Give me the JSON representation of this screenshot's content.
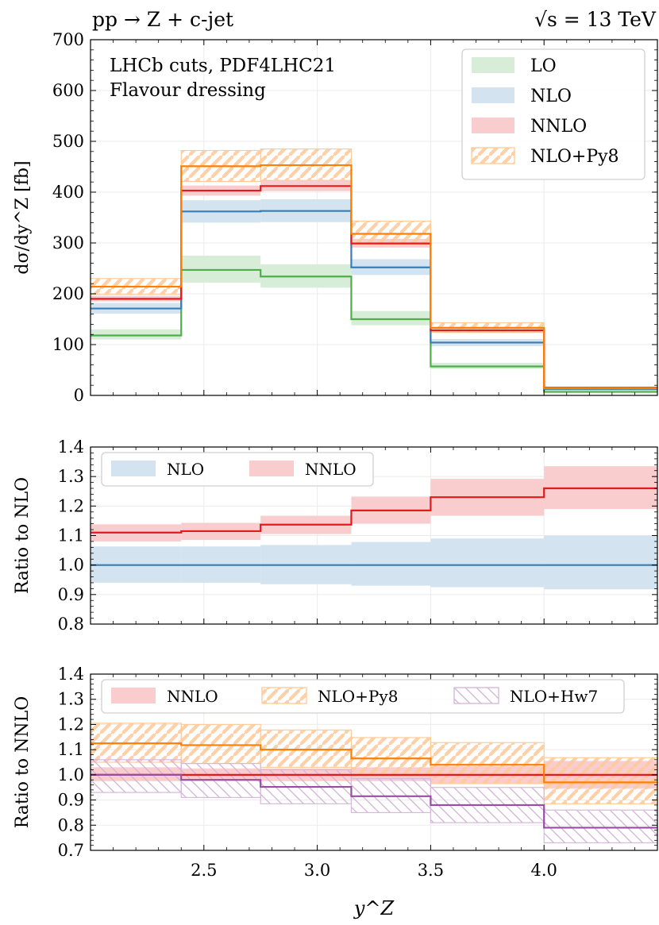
{
  "chart_data": [
    {
      "type": "step",
      "title_left": "pp → Z + c-jet",
      "title_right": "√s = 13 TeV",
      "annotation": [
        "LHCb cuts, PDF4LHC21",
        "Flavour dressing"
      ],
      "ylabel": "dσ/dy^Z [fb]",
      "xlim": [
        2.0,
        4.5
      ],
      "ylim": [
        0,
        700
      ],
      "yticks": [
        0,
        100,
        200,
        300,
        400,
        500,
        600,
        700
      ],
      "ytick_labels": [
        "0",
        "100",
        "200",
        "300",
        "400",
        "500",
        "600",
        "700"
      ],
      "bin_edges": [
        2.0,
        2.4,
        2.75,
        3.15,
        3.5,
        4.0,
        4.5
      ],
      "legend": [
        "LO",
        "NLO",
        "NNLO",
        "NLO+Py8"
      ],
      "series": [
        {
          "name": "LO",
          "color": "#4daf4a",
          "values": [
            118,
            247,
            234,
            150,
            57,
            7
          ],
          "lo": [
            110,
            222,
            212,
            138,
            52,
            6
          ],
          "hi": [
            130,
            275,
            258,
            166,
            64,
            8
          ],
          "style": "fill"
        },
        {
          "name": "NLO",
          "color": "#377eb8",
          "values": [
            171,
            362,
            363,
            252,
            104,
            12
          ],
          "lo": [
            161,
            340,
            341,
            237,
            97,
            11
          ],
          "hi": [
            182,
            384,
            386,
            268,
            111,
            13
          ],
          "style": "fill"
        },
        {
          "name": "NNLO",
          "color": "#e41a1c",
          "values": [
            190,
            403,
            412,
            299,
            128,
            15
          ],
          "lo": [
            185,
            393,
            402,
            291,
            124,
            14
          ],
          "hi": [
            196,
            413,
            423,
            308,
            133,
            16
          ],
          "style": "fill"
        },
        {
          "name": "NLO+Py8",
          "color": "#ff7f00",
          "values": [
            214,
            451,
            453,
            318,
            133,
            14
          ],
          "lo": [
            199,
            421,
            423,
            297,
            124,
            13
          ],
          "hi": [
            230,
            482,
            485,
            343,
            143,
            15
          ],
          "style": "hatch"
        }
      ]
    },
    {
      "type": "step",
      "ylabel": "Ratio to NLO",
      "xlim": [
        2.0,
        4.5
      ],
      "ylim": [
        0.8,
        1.4
      ],
      "yticks": [
        0.8,
        0.9,
        1.0,
        1.1,
        1.2,
        1.3,
        1.4
      ],
      "ytick_labels": [
        "0.8",
        "0.9",
        "1.0",
        "1.1",
        "1.2",
        "1.3",
        "1.4"
      ],
      "bin_edges": [
        2.0,
        2.4,
        2.75,
        3.15,
        3.5,
        4.0,
        4.5
      ],
      "legend": [
        "NLO",
        "NNLO"
      ],
      "series": [
        {
          "name": "NLO",
          "color": "#377eb8",
          "values": [
            1.0,
            1.0,
            1.0,
            1.0,
            1.0,
            1.0
          ],
          "lo": [
            0.94,
            0.94,
            0.935,
            0.93,
            0.925,
            0.918
          ],
          "hi": [
            1.063,
            1.063,
            1.068,
            1.078,
            1.09,
            1.1
          ],
          "style": "fill"
        },
        {
          "name": "NNLO",
          "color": "#e41a1c",
          "values": [
            1.11,
            1.115,
            1.137,
            1.185,
            1.23,
            1.26
          ],
          "lo": [
            1.08,
            1.085,
            1.105,
            1.14,
            1.167,
            1.19
          ],
          "hi": [
            1.138,
            1.143,
            1.167,
            1.232,
            1.292,
            1.335
          ],
          "style": "fill"
        }
      ]
    },
    {
      "type": "step",
      "ylabel": "Ratio to NNLO",
      "xlabel": "y^Z",
      "xlim": [
        2.0,
        4.5
      ],
      "ylim": [
        0.7,
        1.4
      ],
      "yticks": [
        0.7,
        0.8,
        0.9,
        1.0,
        1.1,
        1.2,
        1.3,
        1.4
      ],
      "ytick_labels": [
        "0.7",
        "0.8",
        "0.9",
        "1.0",
        "1.1",
        "1.2",
        "1.3",
        "1.4"
      ],
      "xticks": [
        2.5,
        3.0,
        3.5,
        4.0
      ],
      "xtick_labels": [
        "2.5",
        "3.0",
        "3.5",
        "4.0"
      ],
      "bin_edges": [
        2.0,
        2.4,
        2.75,
        3.15,
        3.5,
        4.0,
        4.5
      ],
      "legend": [
        "NNLO",
        "NLO+Py8",
        "NLO+Hw7"
      ],
      "series": [
        {
          "name": "NNLO",
          "color": "#e41a1c",
          "values": [
            1.0,
            1.0,
            1.0,
            1.0,
            1.0,
            1.0
          ],
          "lo": [
            0.975,
            0.975,
            0.975,
            0.975,
            0.965,
            0.945
          ],
          "hi": [
            1.03,
            1.025,
            1.025,
            1.03,
            1.035,
            1.055
          ],
          "style": "fill"
        },
        {
          "name": "NLO+Py8",
          "color": "#ff7f00",
          "values": [
            1.125,
            1.118,
            1.1,
            1.065,
            1.04,
            0.97
          ],
          "lo": [
            1.05,
            1.045,
            1.03,
            0.995,
            0.965,
            0.885
          ],
          "hi": [
            1.205,
            1.2,
            1.178,
            1.148,
            1.128,
            1.068
          ],
          "style": "hatch"
        },
        {
          "name": "NLO+Hw7",
          "color": "#984ea3",
          "values": [
            1.0,
            0.98,
            0.952,
            0.915,
            0.88,
            0.79
          ],
          "lo": [
            0.93,
            0.91,
            0.885,
            0.85,
            0.81,
            0.73
          ],
          "hi": [
            1.06,
            1.045,
            1.02,
            0.985,
            0.95,
            0.86
          ],
          "style": "hatch_rev"
        }
      ]
    }
  ]
}
